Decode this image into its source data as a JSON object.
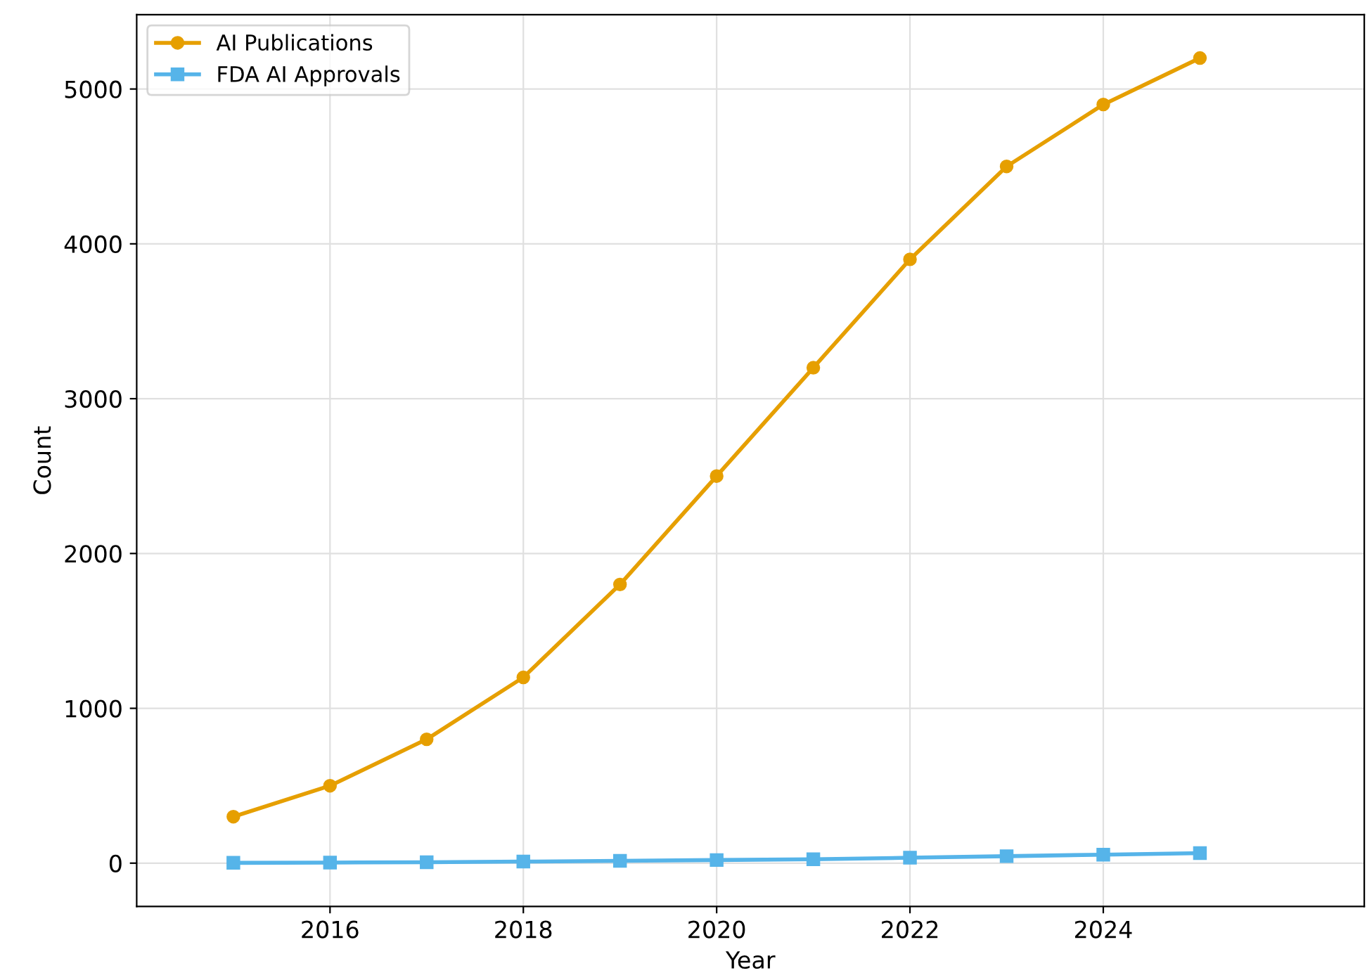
{
  "chart_data": {
    "type": "line",
    "xlabel": "Year",
    "ylabel": "Count",
    "x": [
      2015,
      2016,
      2017,
      2018,
      2019,
      2020,
      2021,
      2022,
      2023,
      2024,
      2025
    ],
    "series": [
      {
        "name": "AI Publications",
        "color": "#e69f00",
        "marker": "circle",
        "values": [
          300,
          500,
          800,
          1200,
          1800,
          2500,
          3200,
          3900,
          4500,
          4900,
          5200
        ]
      },
      {
        "name": "FDA AI Approvals",
        "color": "#56b4e9",
        "marker": "square",
        "values": [
          2,
          4,
          6,
          10,
          15,
          20,
          25,
          35,
          45,
          55,
          65
        ]
      }
    ],
    "xlim": [
      2014.0,
      2026.7
    ],
    "xticks": [
      2016,
      2018,
      2020,
      2022,
      2024
    ],
    "ylim": [
      -280,
      5480
    ],
    "yticks": [
      0,
      1000,
      2000,
      3000,
      4000,
      5000
    ],
    "grid": true,
    "legend": "top left",
    "line_style": "solid"
  }
}
